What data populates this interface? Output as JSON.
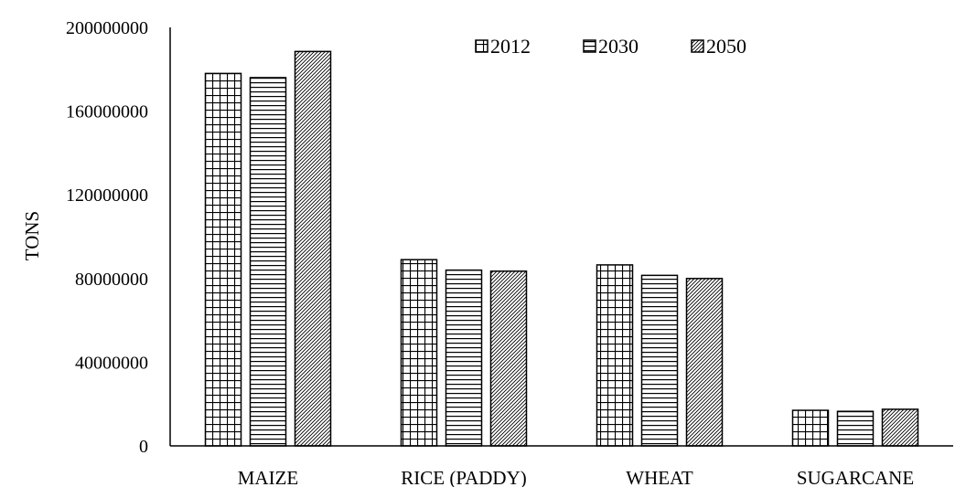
{
  "chart_data": {
    "type": "bar",
    "title": "",
    "xlabel": "",
    "ylabel": "TONS",
    "ylim": [
      0,
      200000000
    ],
    "yticks": [
      0,
      40000000,
      80000000,
      120000000,
      160000000,
      200000000
    ],
    "ytick_labels": [
      "0",
      "40000000",
      "80000000",
      "120000000",
      "160000000",
      "200000000"
    ],
    "categories": [
      "MAIZE",
      "RICE (PADDY)",
      "WHEAT",
      "SUGARCANE"
    ],
    "series": [
      {
        "name": "2012",
        "pattern": "grid",
        "values": [
          178000000,
          89000000,
          86500000,
          17000000
        ]
      },
      {
        "name": "2030",
        "pattern": "horizontal-lines",
        "values": [
          176000000,
          84000000,
          81500000,
          16500000
        ]
      },
      {
        "name": "2050",
        "pattern": "diagonal-hatch",
        "values": [
          188500000,
          83500000,
          80000000,
          17500000
        ]
      }
    ],
    "grid": false,
    "legend": "top-right"
  }
}
